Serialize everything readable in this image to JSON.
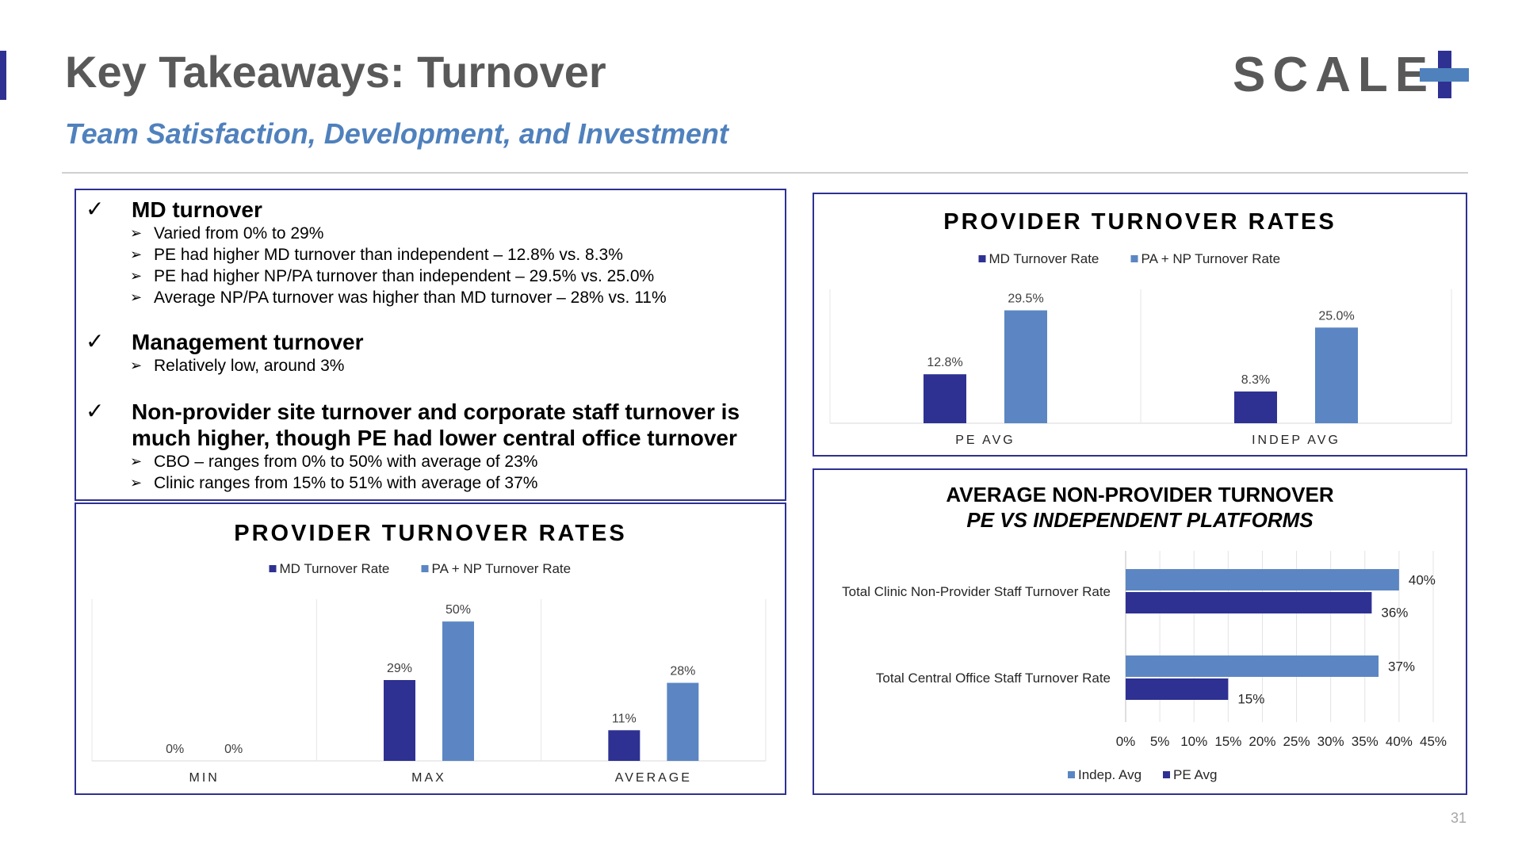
{
  "header": {
    "title": "Key Takeaways: Turnover",
    "subtitle": "Team Satisfaction, Development, and Investment",
    "logo_text": "SCALE"
  },
  "bullets": [
    {
      "check": "✓",
      "heading": "MD turnover",
      "items": [
        "Varied from 0% to 29%",
        "PE had higher MD turnover than independent – 12.8% vs. 8.3%",
        "PE had higher NP/PA turnover than independent – 29.5% vs. 25.0%",
        "Average NP/PA turnover was higher than MD turnover – 28% vs. 11%"
      ]
    },
    {
      "check": "✓",
      "heading": "Management turnover",
      "items": [
        "Relatively low, around 3%"
      ]
    },
    {
      "check": "✓",
      "heading": "Non-provider site turnover and corporate staff turnover is much higher, though PE had lower central office turnover",
      "items": [
        "CBO – ranges from 0% to 50% with average of 23%",
        "Clinic ranges from 15% to 51% with average of 37%"
      ]
    }
  ],
  "arrow_glyph": "➢",
  "page_number": "31",
  "colors": {
    "dark_blue": "#2e3192",
    "light_blue": "#5b86c3",
    "gray_text": "#595959",
    "accent_blue": "#4f81bd"
  },
  "chart_data": [
    {
      "type": "bar",
      "title": "PROVIDER TURNOVER RATES",
      "categories": [
        "PE AVG",
        "INDEP AVG"
      ],
      "series": [
        {
          "name": "MD Turnover Rate",
          "values": [
            12.8,
            8.3
          ],
          "labels": [
            "12.8%",
            "8.3%"
          ],
          "color": "#2e3192"
        },
        {
          "name": "PA + NP Turnover Rate",
          "values": [
            29.5,
            25.0
          ],
          "labels": [
            "29.5%",
            "25.0%"
          ],
          "color": "#5b86c3"
        }
      ],
      "ylim": [
        0,
        35
      ],
      "legend": "top",
      "grid": false
    },
    {
      "type": "bar",
      "title": "PROVIDER TURNOVER RATES",
      "categories": [
        "MIN",
        "MAX",
        "AVERAGE"
      ],
      "series": [
        {
          "name": "MD Turnover Rate",
          "values": [
            0,
            29,
            11
          ],
          "labels": [
            "0%",
            "29%",
            "11%"
          ],
          "color": "#2e3192"
        },
        {
          "name": "PA + NP Turnover Rate",
          "values": [
            0,
            50,
            28
          ],
          "labels": [
            "0%",
            "50%",
            "28%"
          ],
          "color": "#5b86c3"
        }
      ],
      "ylim": [
        0,
        58
      ],
      "legend": "top",
      "grid": false
    },
    {
      "type": "bar",
      "orientation": "horizontal",
      "title": "AVERAGE NON-PROVIDER TURNOVER",
      "subtitle": "PE VS INDEPENDENT PLATFORMS",
      "categories": [
        "Total Clinic Non-Provider Staff Turnover Rate",
        "Total Central Office Staff Turnover Rate"
      ],
      "series": [
        {
          "name": "Indep. Avg",
          "values": [
            40,
            37
          ],
          "labels": [
            "40%",
            "37%"
          ],
          "color": "#5b86c3"
        },
        {
          "name": "PE Avg",
          "values": [
            36,
            15
          ],
          "labels": [
            "36%",
            "15%"
          ],
          "color": "#2e3192"
        }
      ],
      "xlim": [
        0,
        45
      ],
      "x_ticks": [
        "0%",
        "5%",
        "10%",
        "15%",
        "20%",
        "25%",
        "30%",
        "35%",
        "40%",
        "45%"
      ],
      "legend": "bottom",
      "grid": true
    }
  ]
}
